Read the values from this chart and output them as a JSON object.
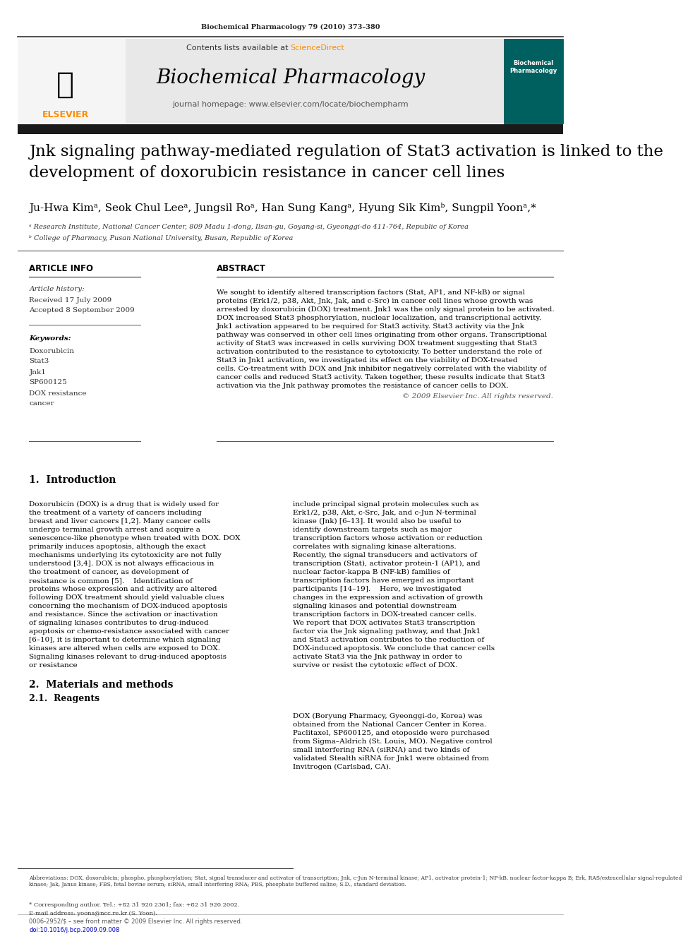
{
  "journal_header": "Biochemical Pharmacology 79 (2010) 373–380",
  "contents_line": "Contents lists available at ScienceDirect",
  "sciencedirect_color": "#FF8C00",
  "journal_name": "Biochemical Pharmacology",
  "journal_homepage": "journal homepage: www.elsevier.com/locate/biochempharm",
  "header_bg": "#e8e8e8",
  "black_bar_color": "#1a1a1a",
  "paper_title": "Jnk signaling pathway-mediated regulation of Stat3 activation is linked to the\ndevelopment of doxorubicin resistance in cancer cell lines",
  "authors": "Ju-Hwa Kimᵃ, Seok Chul Leeᵃ, Jungsil Roᵃ, Han Sung Kangᵃ, Hyung Sik Kimᵇ, Sungpil Yoonᵃ,*",
  "affil_a": "ᵃ Research Institute, National Cancer Center, 809 Madu 1-dong, Ilsan-gu, Goyang-si, Gyeonggi-do 411-764, Republic of Korea",
  "affil_b": "ᵇ College of Pharmacy, Pusan National University, Busan, Republic of Korea",
  "article_info_header": "ARTICLE INFO",
  "abstract_header": "ABSTRACT",
  "article_history_label": "Article history:",
  "received": "Received 17 July 2009",
  "accepted": "Accepted 8 September 2009",
  "keywords_label": "Keywords:",
  "keywords": [
    "Doxorubicin",
    "Stat3",
    "Jnk1",
    "SP600125",
    "DOX resistance",
    "cancer"
  ],
  "abstract_text": "We sought to identify altered transcription factors (Stat, AP1, and NF-kB) or signal proteins (Erk1/2, p38, Akt, Jnk, Jak, and c-Src) in cancer cell lines whose growth was arrested by doxorubicin (DOX) treatment. Jnk1 was the only signal protein to be activated. DOX increased Stat3 phosphorylation, nuclear localization, and transcriptional activity. Jnk1 activation appeared to be required for Stat3 activity. Stat3 activity via the Jnk pathway was conserved in other cell lines originating from other organs. Transcriptional activity of Stat3 was increased in cells surviving DOX treatment suggesting that Stat3 activation contributed to the resistance to cytotoxicity. To better understand the role of Stat3 in Jnk1 activation, we investigated its effect on the viability of DOX-treated cells. Co-treatment with DOX and Jnk inhibitor negatively correlated with the viability of cancer cells and reduced Stat3 activity. Taken together, these results indicate that Stat3 activation via the Jnk pathway promotes the resistance of cancer cells to DOX.",
  "copyright": "© 2009 Elsevier Inc. All rights reserved.",
  "section1_title": "1.  Introduction",
  "intro_col1": "Doxorubicin (DOX) is a drug that is widely used for the treatment of a variety of cancers including breast and liver cancers [1,2]. Many cancer cells undergo terminal growth arrest and acquire a senescence-like phenotype when treated with DOX. DOX primarily induces apoptosis, although the exact mechanisms underlying its cytotoxicity are not fully understood [3,4]. DOX is not always efficacious in the treatment of cancer, as development of resistance is common [5].\n   Identification of proteins whose expression and activity are altered following DOX treatment should yield valuable clues concerning the mechanism of DOX-induced apoptosis and resistance. Since the activation or inactivation of signaling kinases contributes to drug-induced apoptosis or chemo-resistance associated with cancer [6–10], it is important to determine which signaling kinases are altered when cells are exposed to DOX. Signaling kinases relevant to drug-induced apoptosis or resistance",
  "intro_col2": "include principal signal protein molecules such as Erk1/2, p38, Akt, c-Src, Jak, and c-Jun N-terminal kinase (Jnk) [6–13]. It would also be useful to identify downstream targets such as major transcription factors whose activation or reduction correlates with signaling kinase alterations. Recently, the signal transducers and activators of transcription (Stat), activator protein-1 (AP1), and nuclear factor-kappa B (NF-kB) families of transcription factors have emerged as important participants [14–19].\n   Here, we investigated changes in the expression and activation of growth signaling kinases and potential downstream transcription factors in DOX-treated cancer cells. We report that DOX activates Stat3 transcription factor via the Jnk signaling pathway, and that Jnk1 and Stat3 activation contributes to the reduction of DOX-induced apoptosis. We conclude that cancer cells activate Stat3 via the Jnk pathway in order to survive or resist the cytotoxic effect of DOX.",
  "section2_title": "2.  Materials and methods",
  "section21_title": "2.1.  Reagents",
  "reagents_text": "DOX (Boryung Pharmacy, Gyeonggi-do, Korea) was obtained from the National Cancer Center in Korea. Paclitaxel, SP600125, and etoposide were purchased from Sigma–Aldrich (St. Louis, MO). Negative control small interfering RNA (siRNA) and two kinds of validated Stealth siRNA for Jnk1 were obtained from Invitrogen (Carlsbad, CA).",
  "footnote_abbrev": "Abbreviations: DOX, doxorubicin; phospho, phosphorylation; Stat, signal transducer and activator of transcription; Jnk, c-Jun N-terminal kinase; AP1, activator protein-1; NF-kB, nuclear factor-kappa B; Erk, RAS/extracellular signal-regulated kinase; Jak, Janus kinase; FBS, fetal bovine serum; siRNA, small interfering RNA; PBS, phosphate buffered saline; S.D., standard deviation.",
  "footnote_corresponding": "* Corresponding author. Tel.: +82 31 920 2361; fax: +82 31 920 2002.",
  "footnote_email": "E-mail address: yoons@ncc.re.kr (S. Yoon).",
  "footer_left": "0006-2952/$ – see front matter © 2009 Elsevier Inc. All rights reserved.",
  "footer_doi": "doi:10.1016/j.bcp.2009.09.008",
  "bg_color": "#ffffff",
  "text_color": "#000000",
  "blue_color": "#0000CC",
  "teal_color": "#008080"
}
